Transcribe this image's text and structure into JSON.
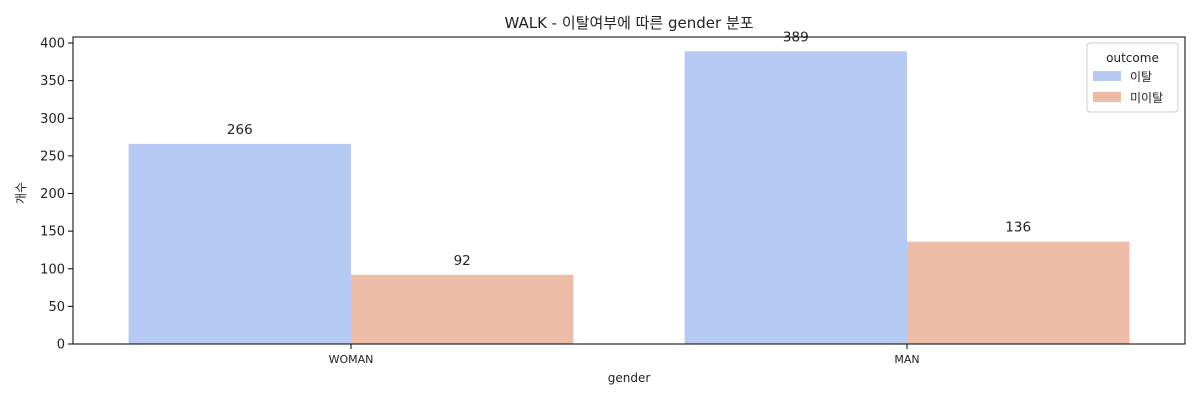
{
  "chart_data": {
    "type": "bar",
    "title": "WALK - 이탈여부에 따른 gender 분포",
    "xlabel": "gender",
    "ylabel": "개수",
    "categories": [
      "WOMAN",
      "MAN"
    ],
    "series": [
      {
        "name": "이탈",
        "values": [
          266,
          389
        ],
        "color": "#b5c9f2"
      },
      {
        "name": "미이탈",
        "values": [
          92,
          136
        ],
        "color": "#ecbca6"
      }
    ],
    "ylim": [
      0,
      408
    ],
    "yticks": [
      "0",
      "50",
      "100",
      "150",
      "200",
      "250",
      "300",
      "350",
      "400"
    ],
    "legend": {
      "title": "outcome",
      "placement": "top-right"
    },
    "grid": false
  }
}
